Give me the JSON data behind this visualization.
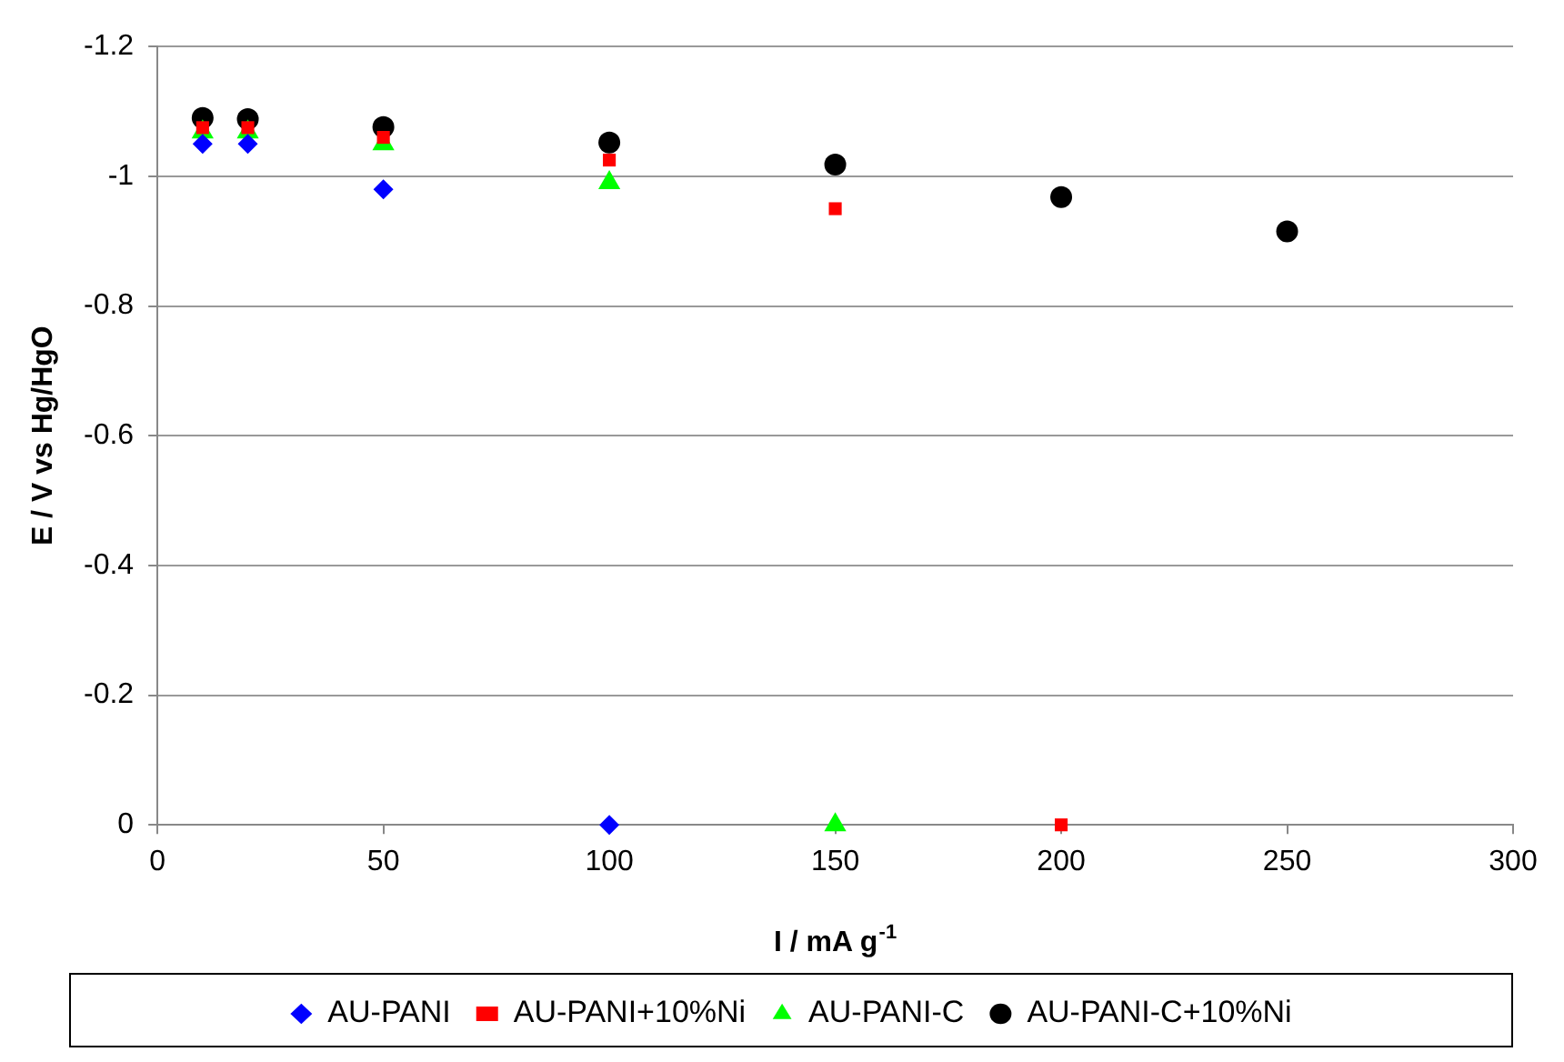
{
  "chart_data": {
    "type": "scatter",
    "xlabel": "I / mA g$^{-1}$",
    "ylabel": "E / V vs Hg/HgO",
    "xlim": [
      0,
      300
    ],
    "xticks": [
      0,
      50,
      100,
      150,
      200,
      250,
      300
    ],
    "ylim": [
      0,
      -1.2
    ],
    "yticks": [
      0,
      -0.2,
      -0.4,
      -0.6,
      -0.8,
      {
        "value": -1,
        "label": "-1"
      },
      -1.2
    ],
    "grid": "y",
    "legend": "bottom",
    "series": [
      {
        "name": "AU-PANI",
        "color": "#0000ff",
        "marker": "diamond",
        "x": [
          10,
          20,
          50,
          100
        ],
        "values": [
          -1.05,
          -1.05,
          -0.98,
          0
        ]
      },
      {
        "name": "AU-PANI+10%Ni",
        "color": "#ff0000",
        "marker": "square",
        "x": [
          10,
          20,
          50,
          100,
          150,
          200
        ],
        "values": [
          -1.075,
          -1.075,
          -1.06,
          -1.025,
          -0.95,
          0
        ]
      },
      {
        "name": "AU-PANI-C",
        "color": "#00ff00",
        "marker": "triangle",
        "x": [
          10,
          20,
          50,
          100,
          150
        ],
        "values": [
          -1.068,
          -1.068,
          -1.05,
          -0.99,
          0
        ]
      },
      {
        "name": "AU-PANI-C+10%Ni",
        "color": "#000000",
        "marker": "circle",
        "x": [
          10,
          20,
          50,
          100,
          150,
          200,
          250
        ],
        "values": [
          -1.09,
          -1.088,
          -1.076,
          -1.052,
          -1.018,
          -0.968,
          -0.915
        ]
      }
    ]
  }
}
